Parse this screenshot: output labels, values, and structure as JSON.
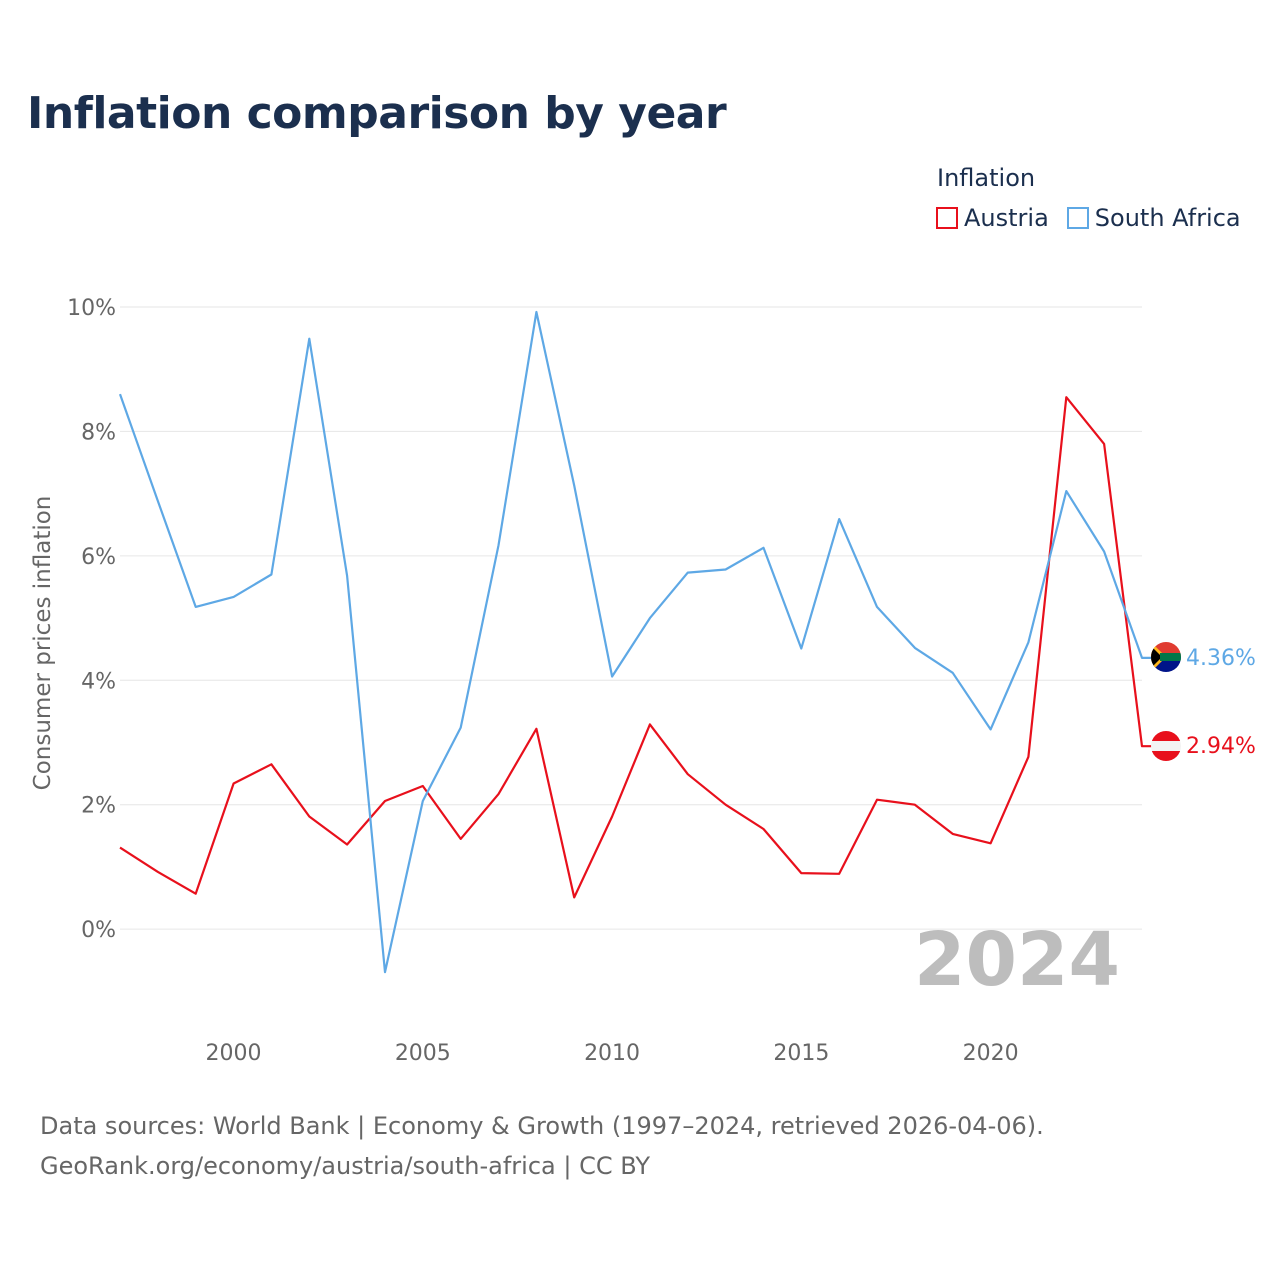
{
  "title": "Inflation comparison by year",
  "legend": {
    "title": "Inflation",
    "items": [
      {
        "label": "Austria",
        "color": "#e8101c"
      },
      {
        "label": "South Africa",
        "color": "#5ea8e5"
      }
    ]
  },
  "footer": {
    "line1": "Data sources: World Bank | Economy & Growth (1997–2024, retrieved 2026-04-06).",
    "line2": "GeoRank.org/economy/austria/south-africa | CC BY"
  },
  "chart_data": {
    "type": "line",
    "title": "Inflation comparison by year",
    "xlabel": "",
    "ylabel": "Consumer prices inflation",
    "year_label": "2024",
    "x": [
      1997,
      1998,
      1999,
      2000,
      2001,
      2002,
      2003,
      2004,
      2005,
      2006,
      2007,
      2008,
      2009,
      2010,
      2011,
      2012,
      2013,
      2014,
      2015,
      2016,
      2017,
      2018,
      2019,
      2020,
      2021,
      2022,
      2023,
      2024
    ],
    "xlim": [
      1997,
      2024
    ],
    "ylim": [
      -1.3,
      10
    ],
    "x_ticks": [
      2000,
      2005,
      2010,
      2015,
      2020
    ],
    "y_ticks": [
      0,
      2,
      4,
      6,
      8,
      10
    ],
    "y_tick_labels": [
      "0%",
      "2%",
      "4%",
      "6%",
      "8%",
      "10%"
    ],
    "grid": true,
    "series": [
      {
        "name": "Austria",
        "color": "#e8101c",
        "values": [
          1.31,
          0.92,
          0.57,
          2.34,
          2.65,
          1.81,
          1.36,
          2.06,
          2.3,
          1.45,
          2.17,
          3.22,
          0.51,
          1.81,
          3.29,
          2.49,
          2.0,
          1.61,
          0.9,
          0.89,
          2.08,
          2.0,
          1.53,
          1.38,
          2.77,
          8.55,
          7.8,
          2.94
        ],
        "end_label": "2.94%"
      },
      {
        "name": "South Africa",
        "color": "#5ea8e5",
        "values": [
          8.6,
          6.88,
          5.18,
          5.34,
          5.7,
          9.49,
          5.68,
          -0.69,
          2.06,
          3.24,
          6.17,
          9.92,
          7.13,
          4.06,
          5.0,
          5.73,
          5.78,
          6.13,
          4.51,
          6.59,
          5.18,
          4.52,
          4.12,
          3.21,
          4.61,
          7.04,
          6.07,
          4.36
        ],
        "end_label": "4.36%"
      }
    ]
  }
}
